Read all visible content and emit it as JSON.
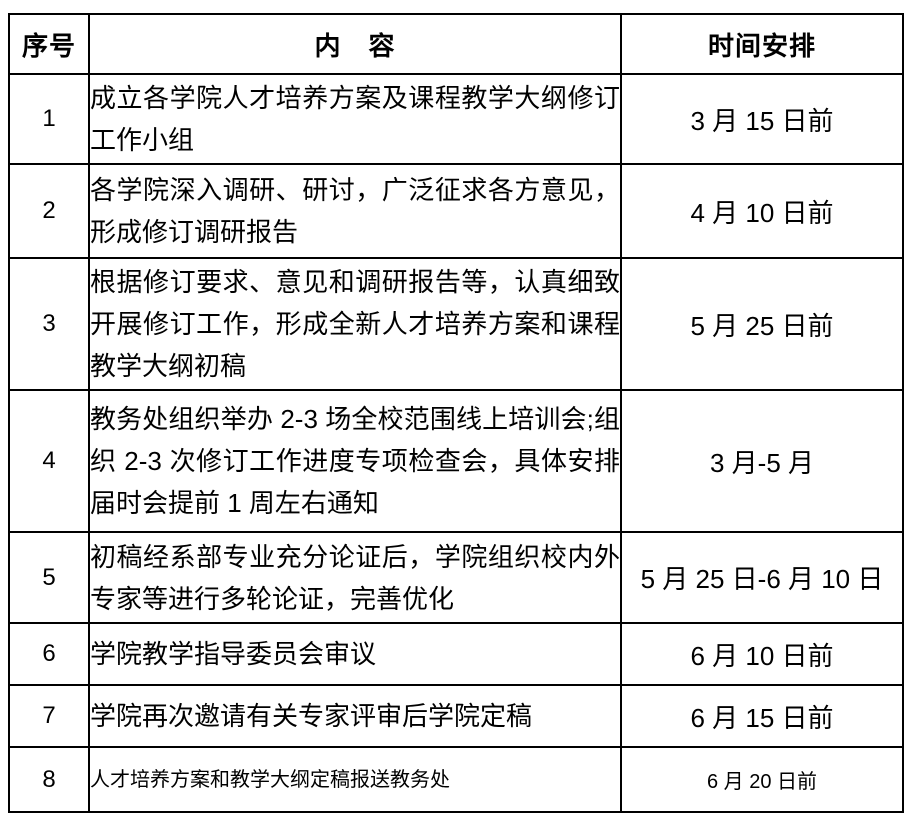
{
  "colors": {
    "border": "#000000",
    "text": "#000000",
    "background": "#ffffff"
  },
  "table": {
    "headers": {
      "no": "序号",
      "content": "内　容",
      "time": "时间安排"
    },
    "rows": [
      {
        "no": "1",
        "content": "成立各学院人才培养方案及课程教学大纲修订工作小组",
        "time": "3 月 15 日前"
      },
      {
        "no": "2",
        "content": "各学院深入调研、研讨，广泛征求各方意见，形成修订调研报告",
        "time": "4 月 10 日前"
      },
      {
        "no": "3",
        "content": "根据修订要求、意见和调研报告等，认真细致开展修订工作，形成全新人才培养方案和课程教学大纲初稿",
        "time": "5 月 25 日前"
      },
      {
        "no": "4",
        "content": "教务处组织举办 2-3 场全校范围线上培训会;组织 2-3 次修订工作进度专项检查会，具体安排届时会提前 1 周左右通知",
        "time": "3 月-5 月"
      },
      {
        "no": "5",
        "content": "初稿经系部专业充分论证后，学院组织校内外专家等进行多轮论证，完善优化",
        "time": "5 月 25 日-6 月 10 日"
      },
      {
        "no": "6",
        "content": "学院教学指导委员会审议",
        "time": "6 月 10 日前"
      },
      {
        "no": "7",
        "content": "学院再次邀请有关专家评审后学院定稿",
        "time": "6 月 15 日前"
      },
      {
        "no": "8",
        "content": "人才培养方案和教学大纲定稿报送教务处",
        "time": "6 月 20 日前"
      }
    ]
  }
}
